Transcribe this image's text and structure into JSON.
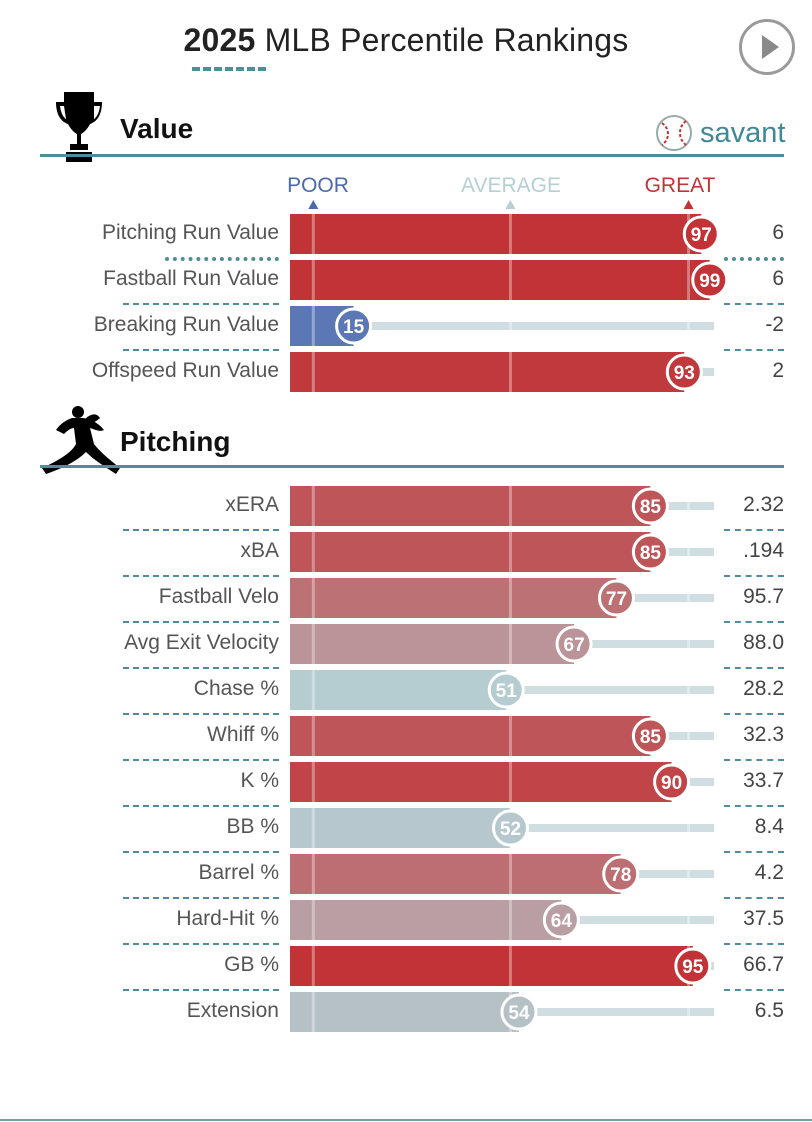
{
  "header": {
    "year": "2025",
    "title_rest": "MLB Percentile Rankings",
    "play_label": "play"
  },
  "brand": {
    "name": "savant"
  },
  "scale": {
    "poor": "POOR",
    "average": "AVERAGE",
    "great": "GREAT"
  },
  "colors": {
    "accent": "#4f8d99",
    "great": "#c13336",
    "poor": "#5b77b5",
    "average": "#b5cfd4",
    "track": "#d0dee1"
  },
  "chart_data": {
    "type": "bar",
    "title": "2025 MLB Percentile Rankings",
    "xlim": [
      0,
      100
    ],
    "scale_labels": [
      "POOR",
      "AVERAGE",
      "GREAT"
    ],
    "sections": [
      {
        "name": "Value",
        "rows": [
          {
            "label": "Pitching Run Value",
            "percentile": 97,
            "value": "6"
          },
          {
            "label": "Fastball Run Value",
            "percentile": 99,
            "value": "6"
          },
          {
            "label": "Breaking Run Value",
            "percentile": 15,
            "value": "-2"
          },
          {
            "label": "Offspeed Run Value",
            "percentile": 93,
            "value": "2"
          }
        ]
      },
      {
        "name": "Pitching",
        "rows": [
          {
            "label": "xERA",
            "percentile": 85,
            "value": "2.32"
          },
          {
            "label": "xBA",
            "percentile": 85,
            "value": ".194"
          },
          {
            "label": "Fastball Velo",
            "percentile": 77,
            "value": "95.7"
          },
          {
            "label": "Avg Exit Velocity",
            "percentile": 67,
            "value": "88.0"
          },
          {
            "label": "Chase %",
            "percentile": 51,
            "value": "28.2"
          },
          {
            "label": "Whiff %",
            "percentile": 85,
            "value": "32.3"
          },
          {
            "label": "K %",
            "percentile": 90,
            "value": "33.7"
          },
          {
            "label": "BB %",
            "percentile": 52,
            "value": "8.4"
          },
          {
            "label": "Barrel %",
            "percentile": 78,
            "value": "4.2"
          },
          {
            "label": "Hard-Hit %",
            "percentile": 64,
            "value": "37.5"
          },
          {
            "label": "GB %",
            "percentile": 95,
            "value": "66.7"
          },
          {
            "label": "Extension",
            "percentile": 54,
            "value": "6.5"
          }
        ]
      }
    ]
  }
}
